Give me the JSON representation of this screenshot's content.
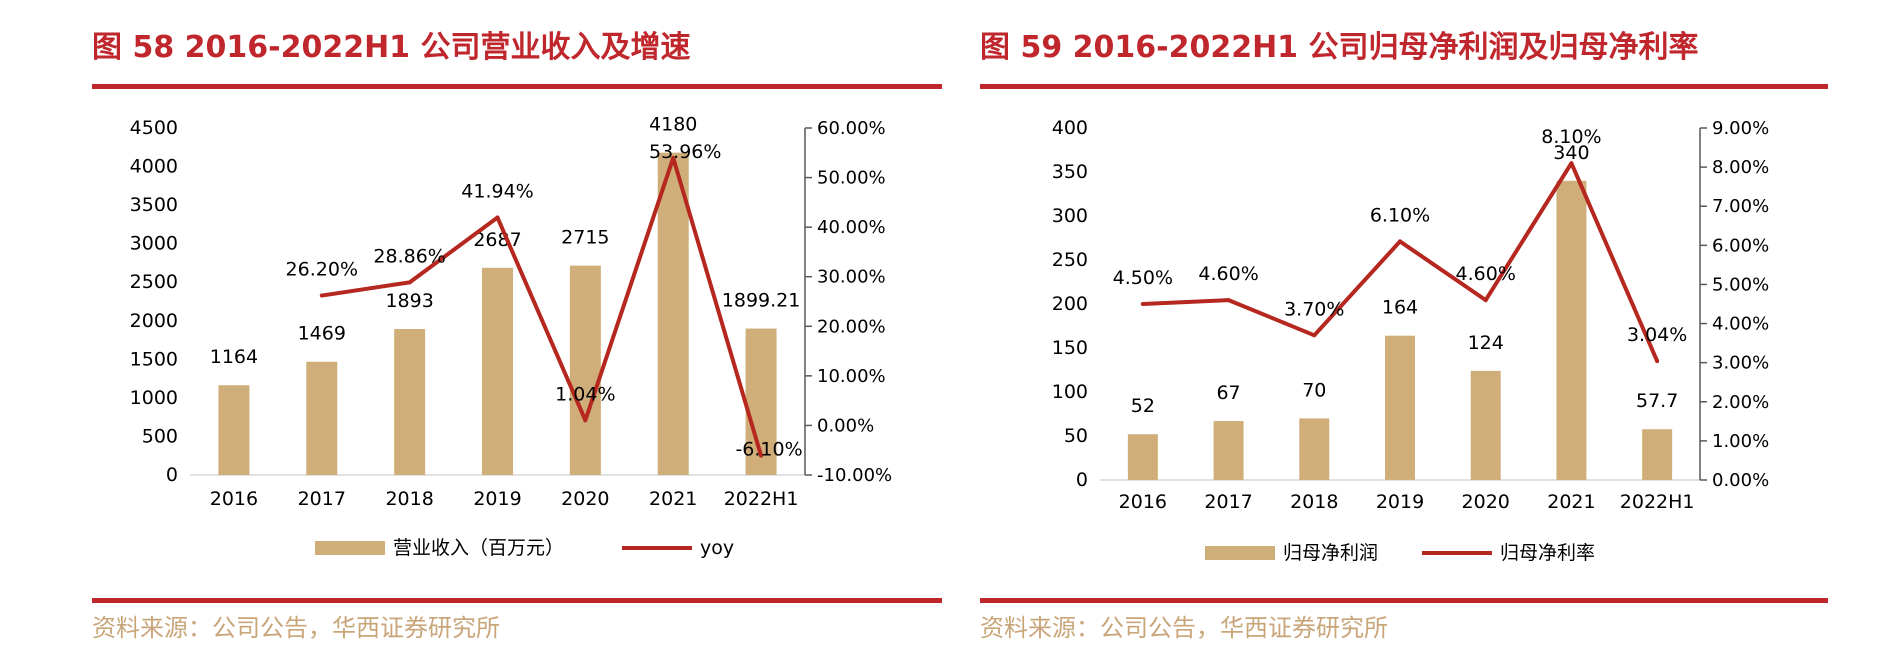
{
  "colors": {
    "accent": "#c0272d",
    "bar": "#cfae7a",
    "line": "#b5271f",
    "source": "#c9a57a"
  },
  "left": {
    "title": "图 58 2016-2022H1 公司营业收入及增速",
    "source": "资料来源：公司公告，华西证券研究所"
  },
  "right": {
    "title": "图 59 2016-2022H1 公司归母净利润及归母净利率",
    "source": "资料来源：公司公告，华西证券研究所"
  },
  "chart_data": [
    {
      "type": "bar+line",
      "categories": [
        "2016",
        "2017",
        "2018",
        "2019",
        "2020",
        "2021",
        "2022H1"
      ],
      "series": [
        {
          "name": "营业收入（百万元）",
          "type": "bar",
          "axis": "left",
          "values": [
            1164,
            1469,
            1893,
            2687,
            2715,
            4180,
            1899.21
          ],
          "labels": [
            "1164",
            "1469",
            "1893",
            "2687",
            "2715",
            "4180",
            "1899.21"
          ]
        },
        {
          "name": "yoy",
          "type": "line",
          "axis": "right",
          "values": [
            null,
            26.2,
            28.86,
            41.94,
            1.04,
            53.96,
            -6.1
          ],
          "labels": [
            "",
            "26.20%",
            "28.86%",
            "41.94%",
            "1.04%",
            "53.96%",
            "-6.10%"
          ]
        }
      ],
      "y_left": {
        "min": 0,
        "max": 4500,
        "step": 500,
        "ticks": [
          "0",
          "500",
          "1000",
          "1500",
          "2000",
          "2500",
          "3000",
          "3500",
          "4000",
          "4500"
        ]
      },
      "y_right": {
        "min": -10,
        "max": 60,
        "step": 10,
        "ticks": [
          "-10.00%",
          "0.00%",
          "10.00%",
          "20.00%",
          "30.00%",
          "40.00%",
          "50.00%",
          "60.00%"
        ]
      },
      "legend_position": "bottom"
    },
    {
      "type": "bar+line",
      "categories": [
        "2016",
        "2017",
        "2018",
        "2019",
        "2020",
        "2021",
        "2022H1"
      ],
      "series": [
        {
          "name": "归母净利润",
          "type": "bar",
          "axis": "left",
          "values": [
            52,
            67,
            70,
            164,
            124,
            340,
            57.7
          ],
          "labels": [
            "52",
            "67",
            "70",
            "164",
            "124",
            "340",
            "57.7"
          ]
        },
        {
          "name": "归母净利率",
          "type": "line",
          "axis": "right",
          "values": [
            4.5,
            4.6,
            3.7,
            6.1,
            4.6,
            8.1,
            3.04
          ],
          "labels": [
            "4.50%",
            "4.60%",
            "3.70%",
            "6.10%",
            "4.60%",
            "8.10%",
            "3.04%"
          ]
        }
      ],
      "y_left": {
        "min": 0,
        "max": 400,
        "step": 50,
        "ticks": [
          "0",
          "50",
          "100",
          "150",
          "200",
          "250",
          "300",
          "350",
          "400"
        ]
      },
      "y_right": {
        "min": 0,
        "max": 9,
        "step": 1,
        "ticks": [
          "0.00%",
          "1.00%",
          "2.00%",
          "3.00%",
          "4.00%",
          "5.00%",
          "6.00%",
          "7.00%",
          "8.00%",
          "9.00%"
        ]
      },
      "legend_position": "bottom"
    }
  ]
}
